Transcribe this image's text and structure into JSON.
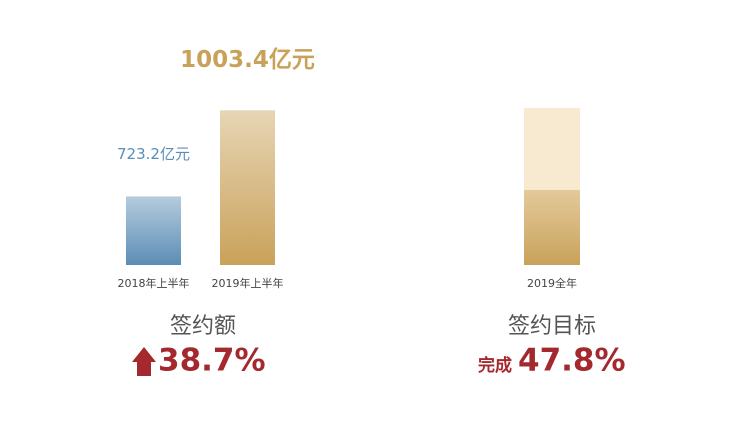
{
  "chart_data": [
    {
      "type": "bar",
      "title": "签约额",
      "growth": "38.7%",
      "categories": [
        "2018年上半年",
        "2019年上半年"
      ],
      "values": [
        723.2,
        1003.4
      ],
      "value_labels": [
        "723.2亿元",
        "1003.4亿元"
      ],
      "colors": [
        "#5b8db5",
        "#c9a25a"
      ],
      "ylim": [
        500,
        1050
      ]
    },
    {
      "type": "progress",
      "title": "签约目标",
      "completion_label": "完成",
      "categories": [
        "2019全年"
      ],
      "values": [
        47.8
      ],
      "value_labels": [
        "47.8%"
      ],
      "color": "#c9a25a",
      "ylim": [
        0,
        100
      ]
    }
  ]
}
